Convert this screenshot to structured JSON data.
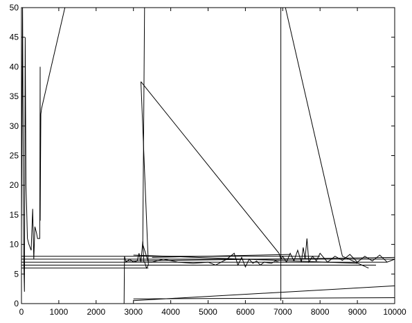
{
  "chart_data": {
    "type": "line",
    "title": "",
    "xlabel": "",
    "ylabel": "",
    "xlim": [
      0,
      10000
    ],
    "ylim": [
      0,
      50
    ],
    "xticks": [
      0,
      1000,
      2000,
      3000,
      4000,
      5000,
      6000,
      7000,
      8000,
      9000,
      10000
    ],
    "yticks": [
      0,
      5,
      10,
      15,
      20,
      25,
      30,
      35,
      40,
      45,
      50
    ],
    "grid": false,
    "legend": "none",
    "color": "#000000",
    "series": [
      {
        "x": [
          0,
          30,
          60,
          80,
          100,
          120,
          140,
          160,
          200,
          260,
          300,
          330,
          360,
          400,
          430,
          460,
          490,
          500,
          500,
          520,
          540,
          1200
        ],
        "y": [
          12,
          50,
          8,
          2,
          45,
          20,
          16,
          11,
          10,
          9,
          16,
          7.5,
          13,
          12,
          11,
          11,
          11,
          40,
          14,
          32,
          33,
          51
        ]
      },
      {
        "x": [
          2750,
          2760,
          2800,
          2900,
          3000,
          3100,
          3150,
          3200,
          3250,
          3280,
          3300,
          3350,
          3400,
          3200
        ],
        "y": [
          0,
          8,
          7,
          7.5,
          7,
          7.2,
          8.5,
          7,
          10.5,
          7,
          7,
          6,
          6.5,
          37.5
        ]
      },
      {
        "x": [
          3200,
          6900,
          6950,
          7000,
          7100,
          7200,
          7300,
          7400,
          7500,
          7550,
          7600,
          7650,
          7700,
          7800,
          7900,
          8000,
          8200,
          8400,
          8600,
          8800,
          9000,
          9200,
          9400,
          9600,
          9800,
          10000
        ],
        "y": [
          37.5,
          8.5,
          7.5,
          8,
          7,
          8.5,
          7.2,
          9,
          7,
          9.5,
          7.5,
          11,
          7,
          8,
          7.2,
          8.5,
          7,
          8,
          7.3,
          8.3,
          7,
          8,
          7.2,
          8.2,
          7,
          7.5
        ]
      },
      {
        "x": [
          3300,
          3250,
          3400,
          3500,
          3800,
          4200,
          4600,
          5000,
          5200,
          5500,
          5700,
          5800,
          5900,
          6000,
          6100,
          6200,
          6300,
          6400,
          6500,
          6700,
          6800,
          6900
        ],
        "y": [
          52,
          10,
          7,
          7,
          7.5,
          7,
          6.8,
          7,
          6.5,
          7.5,
          8.5,
          6.5,
          7.8,
          6.2,
          7.5,
          6.8,
          7.2,
          6.5,
          7,
          6.8,
          7.2,
          7
        ]
      },
      {
        "x": [
          6950,
          6950,
          6950
        ],
        "y": [
          50,
          7,
          0.5
        ]
      },
      {
        "x": [
          7000,
          8600,
          9300
        ],
        "y": [
          52,
          8,
          6
        ]
      },
      {
        "x": [
          3000,
          10000
        ],
        "y": [
          0.5,
          3
        ]
      },
      {
        "x": [
          3000,
          10000
        ],
        "y": [
          0.8,
          1
        ]
      },
      {
        "x": [
          0,
          3400
        ],
        "y": [
          6,
          6
        ]
      },
      {
        "x": [
          0,
          9500
        ],
        "y": [
          6.5,
          6.5
        ]
      },
      {
        "x": [
          0,
          9800
        ],
        "y": [
          7,
          7
        ]
      },
      {
        "x": [
          0,
          10000
        ],
        "y": [
          7.5,
          7.5
        ]
      },
      {
        "x": [
          0,
          8000
        ],
        "y": [
          8,
          8
        ]
      },
      {
        "x": [
          2800,
          10000
        ],
        "y": [
          7.2,
          7.8
        ]
      },
      {
        "x": [
          3000,
          9000
        ],
        "y": [
          8.2,
          6.8
        ]
      },
      {
        "x": [
          3500,
          7200
        ],
        "y": [
          7.8,
          8.3
        ]
      }
    ]
  }
}
